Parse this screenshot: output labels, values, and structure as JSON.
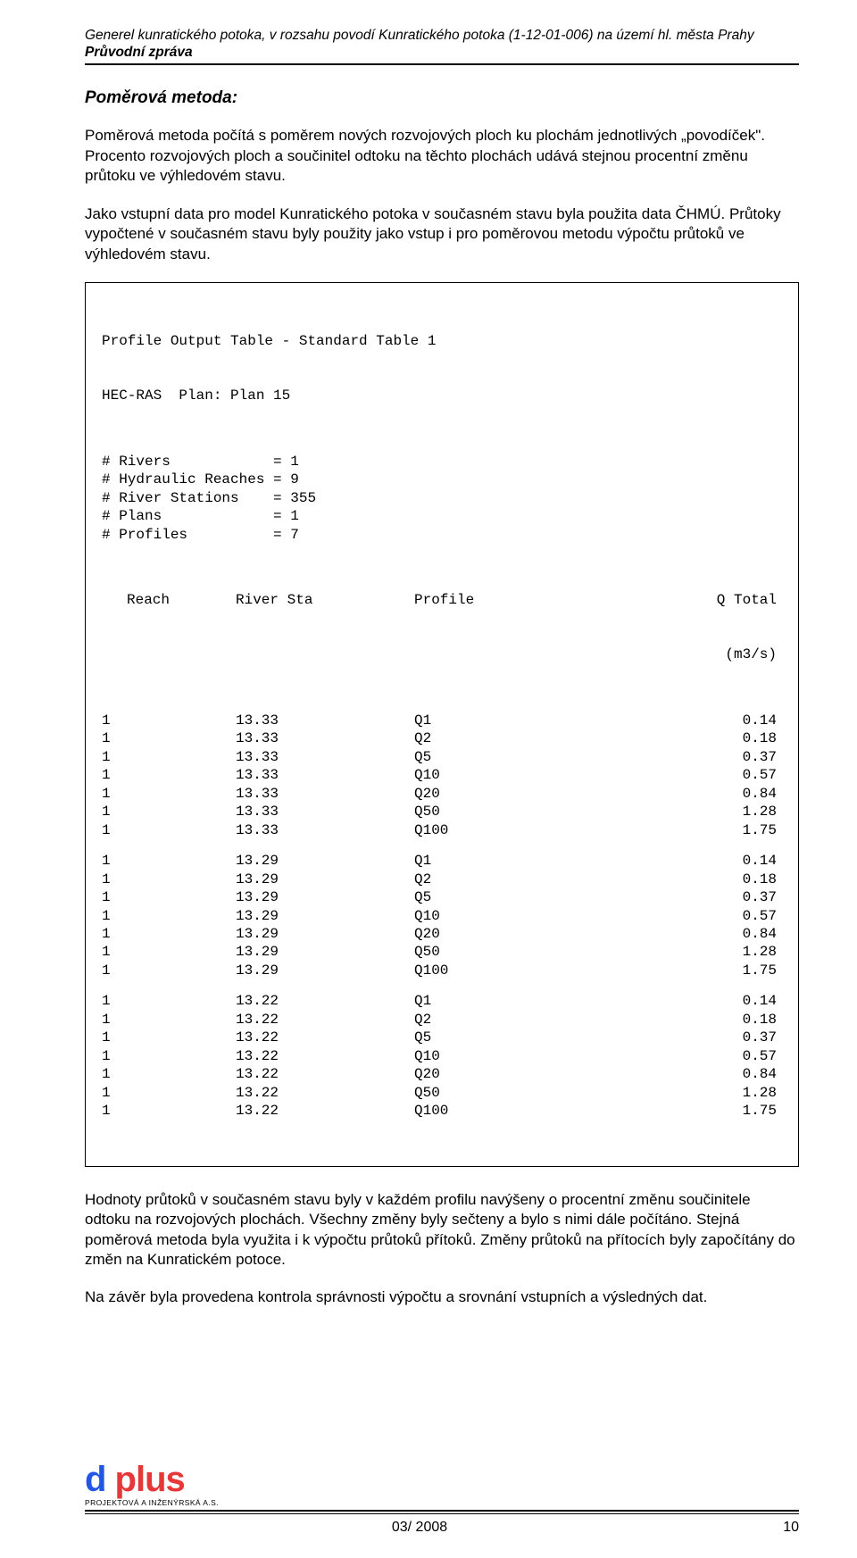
{
  "header": {
    "line1": "Generel kunratického potoka, v rozsahu povodí Kunratického potoka (1-12-01-006) na území hl. města Prahy",
    "line2": "Průvodní zpráva"
  },
  "section_title": "Poměrová metoda:",
  "para1": "Poměrová metoda počítá s poměrem nových rozvojových ploch ku plochám jednotlivých „povodíček\". Procento rozvojových ploch a součinitel odtoku na těchto plochách udává stejnou procentní změnu průtoku ve výhledovém stavu.",
  "para2": "Jako vstupní data pro model Kunratického potoka v současném stavu byla použita data ČHMÚ. Průtoky vypočtené v současném stavu byly použity jako vstup i pro poměrovou metodu výpočtu průtoků ve výhledovém stavu.",
  "table": {
    "title": "Profile Output Table - Standard Table 1",
    "subtitle": "HEC-RAS  Plan: Plan 15",
    "meta": [
      "# Rivers            = 1",
      "# Hydraulic Reaches = 9",
      "# River Stations    = 355",
      "# Plans             = 1",
      "# Profiles          = 7"
    ],
    "col_headers": [
      "Reach",
      "River Sta",
      "Profile",
      "Q Total"
    ],
    "unit": "(m3/s)",
    "groups": [
      {
        "station": "13.33",
        "rows": [
          {
            "reach": "1",
            "profile": "Q1",
            "q": "0.14"
          },
          {
            "reach": "1",
            "profile": "Q2",
            "q": "0.18"
          },
          {
            "reach": "1",
            "profile": "Q5",
            "q": "0.37"
          },
          {
            "reach": "1",
            "profile": "Q10",
            "q": "0.57"
          },
          {
            "reach": "1",
            "profile": "Q20",
            "q": "0.84"
          },
          {
            "reach": "1",
            "profile": "Q50",
            "q": "1.28"
          },
          {
            "reach": "1",
            "profile": "Q100",
            "q": "1.75"
          }
        ]
      },
      {
        "station": "13.29",
        "rows": [
          {
            "reach": "1",
            "profile": "Q1",
            "q": "0.14"
          },
          {
            "reach": "1",
            "profile": "Q2",
            "q": "0.18"
          },
          {
            "reach": "1",
            "profile": "Q5",
            "q": "0.37"
          },
          {
            "reach": "1",
            "profile": "Q10",
            "q": "0.57"
          },
          {
            "reach": "1",
            "profile": "Q20",
            "q": "0.84"
          },
          {
            "reach": "1",
            "profile": "Q50",
            "q": "1.28"
          },
          {
            "reach": "1",
            "profile": "Q100",
            "q": "1.75"
          }
        ]
      },
      {
        "station": "13.22",
        "rows": [
          {
            "reach": "1",
            "profile": "Q1",
            "q": "0.14"
          },
          {
            "reach": "1",
            "profile": "Q2",
            "q": "0.18"
          },
          {
            "reach": "1",
            "profile": "Q5",
            "q": "0.37"
          },
          {
            "reach": "1",
            "profile": "Q10",
            "q": "0.57"
          },
          {
            "reach": "1",
            "profile": "Q20",
            "q": "0.84"
          },
          {
            "reach": "1",
            "profile": "Q50",
            "q": "1.28"
          },
          {
            "reach": "1",
            "profile": "Q100",
            "q": "1.75"
          }
        ]
      }
    ]
  },
  "para3": "Hodnoty průtoků v současném stavu byly v každém profilu navýšeny o procentní změnu součinitele odtoku na rozvojových plochách. Všechny změny byly sečteny a bylo s nimi dále počítáno. Stejná poměrová metoda byla využita i k výpočtu průtoků přítoků. Změny průtoků na přítocích byly započítány do změn na Kunratickém potoce.",
  "para4": "Na závěr byla provedena kontrola správnosti výpočtu a srovnání vstupních a výsledných dat.",
  "logo": {
    "part1": "d",
    "part2": " plus",
    "subtitle": "PROJEKTOVÁ A INŽENÝRSKÁ A.S."
  },
  "footer": {
    "date": "03/ 2008",
    "page": "10"
  }
}
